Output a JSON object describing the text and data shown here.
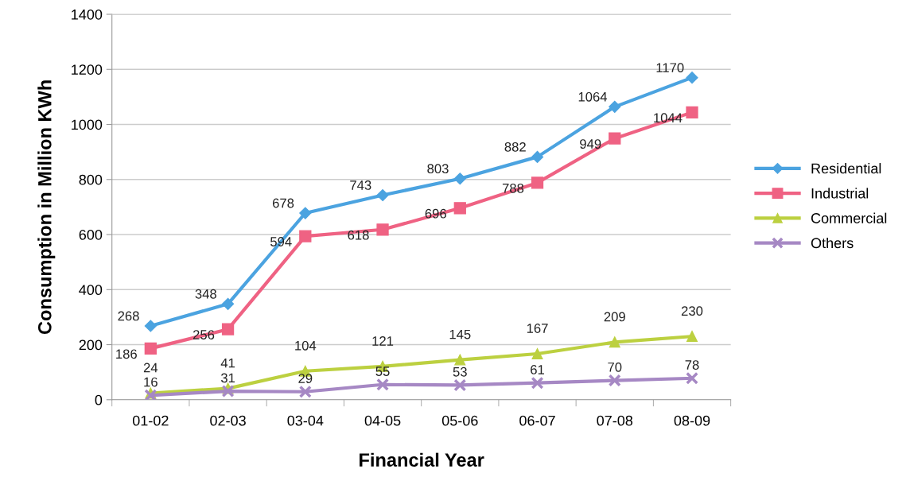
{
  "chart_data": {
    "type": "line",
    "xlabel": "Financial Year",
    "ylabel": "Consumption in Million KWh",
    "categories": [
      "01-02",
      "02-03",
      "03-04",
      "04-05",
      "05-06",
      "06-07",
      "07-08",
      "08-09"
    ],
    "series": [
      {
        "name": "Residential",
        "color": "#4ba3e0",
        "marker": "diamond",
        "values": [
          268,
          348,
          678,
          743,
          803,
          882,
          1064,
          1170
        ]
      },
      {
        "name": "Industrial",
        "color": "#ef6283",
        "marker": "square",
        "values": [
          186,
          256,
          594,
          618,
          696,
          788,
          949,
          1044
        ]
      },
      {
        "name": "Commercial",
        "color": "#bcd040",
        "marker": "triangle",
        "values": [
          24,
          41,
          104,
          121,
          145,
          167,
          209,
          230
        ]
      },
      {
        "name": "Others",
        "color": "#a688c4",
        "marker": "cross",
        "values": [
          16,
          31,
          29,
          55,
          53,
          61,
          70,
          78
        ]
      }
    ],
    "ylim": [
      0,
      1400
    ],
    "yticks": [
      0,
      200,
      400,
      600,
      800,
      1000,
      1200,
      1400
    ],
    "grid": "y",
    "legend": "right",
    "data_labels": true,
    "line_style": "solid"
  }
}
